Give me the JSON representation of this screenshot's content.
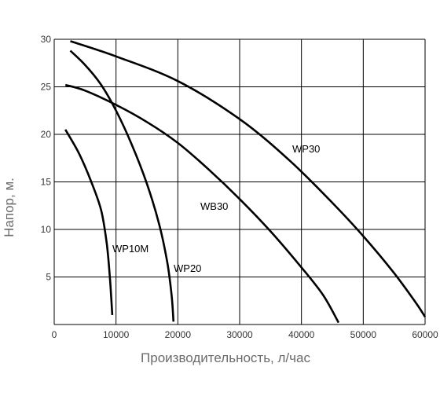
{
  "chart_data": {
    "type": "line",
    "xlabel": "Производительность, л/час",
    "ylabel": "Напор, м.",
    "xlim": [
      0,
      60000
    ],
    "ylim": [
      0,
      30
    ],
    "xticks": [
      0,
      10000,
      20000,
      30000,
      40000,
      50000,
      60000
    ],
    "yticks": [
      5,
      10,
      15,
      20,
      25,
      30
    ],
    "grid": true,
    "series": [
      {
        "name": "WP10M",
        "points": [
          [
            1800,
            20.5
          ],
          [
            4000,
            18.0
          ],
          [
            6000,
            15.0
          ],
          [
            7600,
            12.0
          ],
          [
            8500,
            8.5
          ],
          [
            9000,
            5.0
          ],
          [
            9400,
            1.0
          ]
        ]
      },
      {
        "name": "WP20",
        "points": [
          [
            2600,
            28.8
          ],
          [
            5000,
            27.3
          ],
          [
            7500,
            25.3
          ],
          [
            10000,
            22.5
          ],
          [
            12500,
            19.0
          ],
          [
            15000,
            14.8
          ],
          [
            17000,
            10.5
          ],
          [
            18300,
            6.5
          ],
          [
            19000,
            3.0
          ],
          [
            19300,
            0.3
          ]
        ]
      },
      {
        "name": "WB30",
        "points": [
          [
            1800,
            25.2
          ],
          [
            5000,
            24.6
          ],
          [
            10000,
            23.1
          ],
          [
            15000,
            21.3
          ],
          [
            20000,
            19.1
          ],
          [
            25000,
            16.3
          ],
          [
            30000,
            13.2
          ],
          [
            35000,
            9.8
          ],
          [
            40000,
            6.0
          ],
          [
            43500,
            3.1
          ],
          [
            46000,
            0.2
          ]
        ]
      },
      {
        "name": "WP30",
        "points": [
          [
            2600,
            29.8
          ],
          [
            10000,
            28.2
          ],
          [
            20000,
            25.6
          ],
          [
            30000,
            21.6
          ],
          [
            38000,
            17.3
          ],
          [
            45000,
            12.8
          ],
          [
            50000,
            9.3
          ],
          [
            55000,
            5.4
          ],
          [
            58500,
            2.3
          ],
          [
            60000,
            0.8
          ]
        ]
      }
    ]
  }
}
